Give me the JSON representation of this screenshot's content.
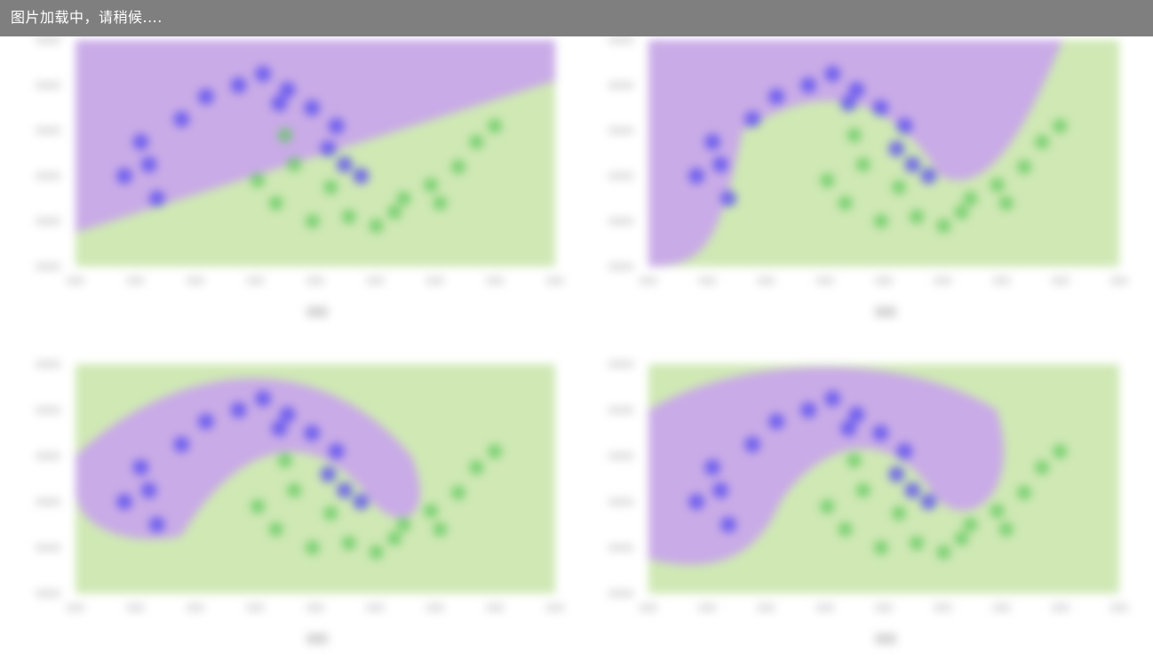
{
  "loading_message": "图片加载中，请稍候....",
  "figure": {
    "state": "blurred-placeholder",
    "colors": {
      "class_a_region": "#c8a8ea",
      "class_b_region": "#cfe8b4",
      "class_a_points": "#5a4ef0",
      "class_b_points": "#5cc85c",
      "loading_bar": "#7f7f7f"
    }
  }
}
